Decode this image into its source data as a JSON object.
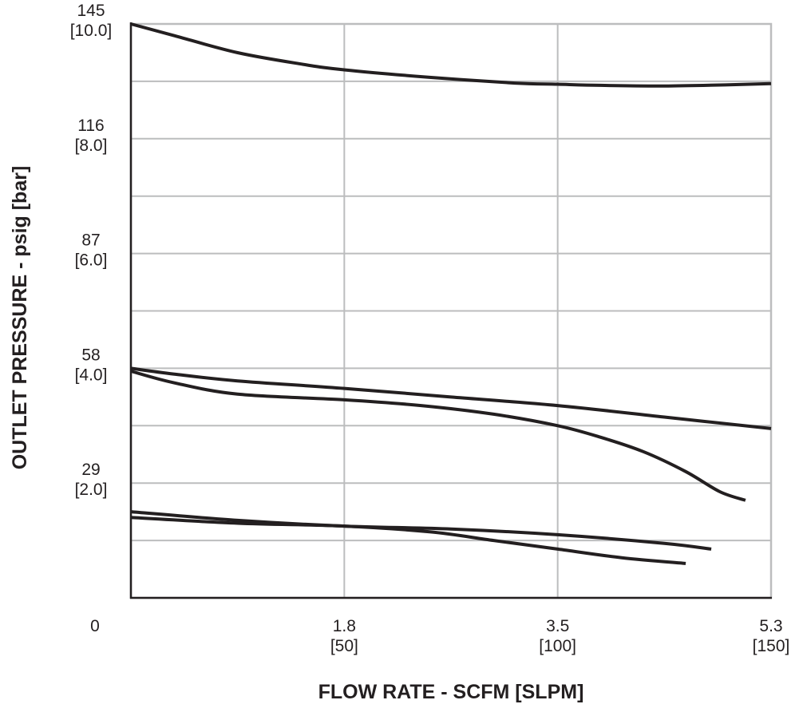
{
  "chart_data": {
    "type": "line",
    "xlabel": "FLOW RATE - SCFM [SLPM]",
    "ylabel": "OUTLET PRESSURE - psig [bar]",
    "xlim": [
      0,
      150
    ],
    "ylim": [
      0,
      10.0
    ],
    "x_unit": "SLPM",
    "y_unit": "bar",
    "grid": true,
    "x_ticks": [
      {
        "value": 0,
        "line1": "0",
        "line2": ""
      },
      {
        "value": 50,
        "line1": "1.8",
        "line2": "[50]"
      },
      {
        "value": 100,
        "line1": "3.5",
        "line2": "[100]"
      },
      {
        "value": 150,
        "line1": "5.3",
        "line2": "[150]"
      }
    ],
    "x_gridlines": [
      50,
      100,
      150
    ],
    "y_ticks": [
      {
        "value": 10.0,
        "line1": "145",
        "line2": "[10.0]"
      },
      {
        "value": 8.0,
        "line1": "116",
        "line2": "[8.0]"
      },
      {
        "value": 6.0,
        "line1": "87",
        "line2": "[6.0]"
      },
      {
        "value": 4.0,
        "line1": "58",
        "line2": "[4.0]"
      },
      {
        "value": 2.0,
        "line1": "29",
        "line2": "[2.0]"
      }
    ],
    "y_gridlines": [
      10,
      9,
      8,
      7,
      6,
      5,
      4,
      3,
      2,
      1
    ],
    "series": [
      {
        "x": [
          0,
          10,
          25,
          40,
          50,
          70,
          90,
          100,
          110,
          125,
          140,
          150
        ],
        "y": [
          10.0,
          9.8,
          9.5,
          9.3,
          9.2,
          9.07,
          8.97,
          8.95,
          8.93,
          8.92,
          8.94,
          8.96
        ]
      },
      {
        "x": [
          0,
          10,
          25,
          50,
          75,
          100,
          125,
          150
        ],
        "y": [
          4.0,
          3.9,
          3.78,
          3.65,
          3.5,
          3.35,
          3.15,
          2.95
        ]
      },
      {
        "x": [
          0,
          10,
          25,
          50,
          68,
          85,
          100,
          110,
          120,
          130,
          138,
          144
        ],
        "y": [
          3.95,
          3.75,
          3.55,
          3.45,
          3.35,
          3.2,
          3.0,
          2.8,
          2.55,
          2.2,
          1.85,
          1.7
        ]
      },
      {
        "x": [
          0,
          25,
          50,
          75,
          100,
          125,
          136
        ],
        "y": [
          1.5,
          1.35,
          1.25,
          1.2,
          1.1,
          0.95,
          0.85
        ]
      },
      {
        "x": [
          0,
          25,
          50,
          70,
          85,
          100,
          115,
          130
        ],
        "y": [
          1.4,
          1.3,
          1.25,
          1.15,
          1.0,
          0.85,
          0.7,
          0.6
        ]
      }
    ]
  }
}
